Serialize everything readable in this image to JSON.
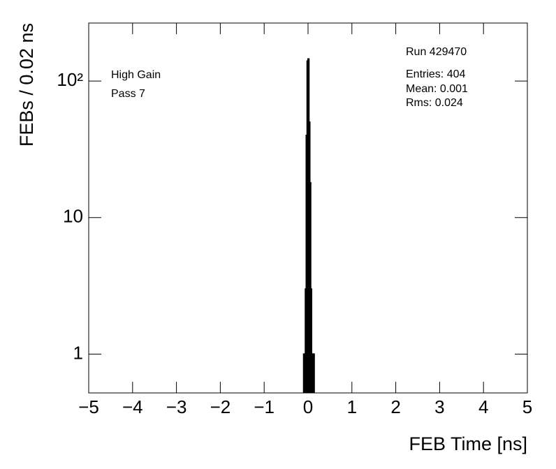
{
  "chart_data": {
    "type": "histogram",
    "x_label": "FEB Time [ns]",
    "y_label": "FEBs / 0.02 ns",
    "annotations": [
      "High Gain",
      "Pass 7"
    ],
    "stats": [
      "Run 429470",
      "Entries: 404",
      "Mean: 0.001",
      "Rms: 0.024"
    ],
    "bins": [
      -0.1,
      -0.08,
      -0.06,
      -0.04,
      -0.02,
      0,
      0.02,
      0.04,
      0.06,
      0.08,
      0.1,
      0.12,
      0.14
    ],
    "values": [
      1,
      1,
      3,
      40,
      140,
      145,
      50,
      18,
      3,
      1,
      1,
      1
    ],
    "color": "#000000",
    "xlim": [
      -5,
      5
    ],
    "xticks": [
      {
        "value": -5,
        "label": "−5"
      },
      {
        "value": -4,
        "label": "−4"
      },
      {
        "value": -3,
        "label": "−3"
      },
      {
        "value": -2,
        "label": "−2"
      },
      {
        "value": -1,
        "label": "−1"
      },
      0,
      1,
      2,
      3,
      4,
      5
    ],
    "ylim": [
      0.52,
      266
    ],
    "y_log": true,
    "yticks": [
      1,
      10,
      {
        "value": 100,
        "label": "10²"
      }
    ]
  }
}
